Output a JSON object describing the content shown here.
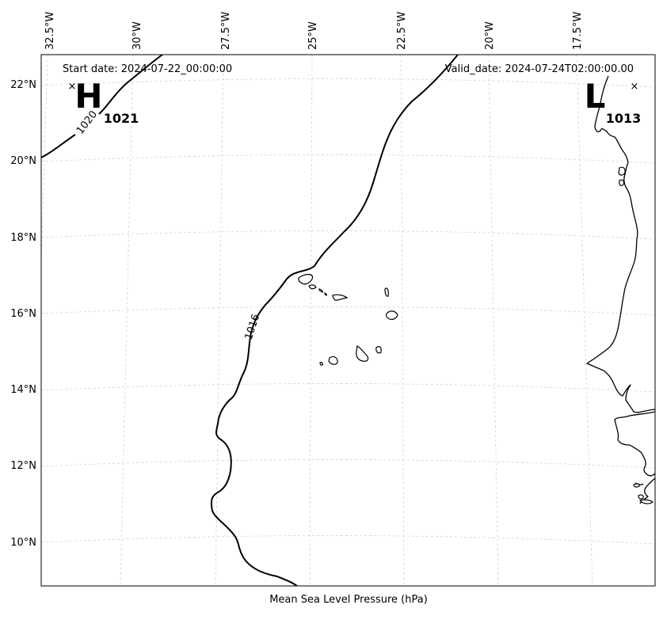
{
  "header": {
    "start_date": "Start date: 2024-07-22_00:00:00",
    "valid_date": "Valid_date: 2024-07-24T02:00:00.00"
  },
  "xlabel": "Mean Sea Level Pressure (hPa)",
  "longitude_ticks": [
    "32.5°W",
    "30°W",
    "27.5°W",
    "25°W",
    "22.5°W",
    "20°W",
    "17.5°W"
  ],
  "latitude_ticks": [
    "22°N",
    "20°N",
    "18°N",
    "16°N",
    "14°N",
    "12°N",
    "10°N"
  ],
  "contour_labels": [
    "1020",
    "1016"
  ],
  "pressure_centers": [
    {
      "letter": "H",
      "value": "1021",
      "marker": "×"
    },
    {
      "letter": "L",
      "value": "1013",
      "marker": "×"
    }
  ]
}
